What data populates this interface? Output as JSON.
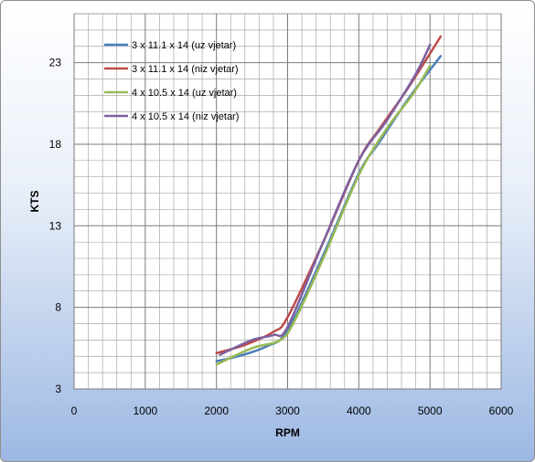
{
  "chart_data": {
    "type": "line",
    "xlabel": "RPM",
    "ylabel": "KTS",
    "xlim": [
      0,
      6000
    ],
    "ylim": [
      3,
      26
    ],
    "x_ticks": [
      0,
      1000,
      2000,
      3000,
      4000,
      5000,
      6000
    ],
    "y_ticks": [
      3,
      8,
      13,
      18,
      23
    ],
    "x_minor_step": 200,
    "y_minor_step": 1,
    "grid": true,
    "legend_position": "top-left",
    "series": [
      {
        "name": "3 x 11.1 x 14 (uz vjetar)",
        "color": "#4a7ebb",
        "x": [
          2000,
          2300,
          2700,
          3000,
          3500,
          4000,
          4300,
          4700,
          5150
        ],
        "y": [
          4.7,
          5.0,
          5.6,
          6.6,
          11.2,
          16.2,
          18.2,
          20.8,
          23.4
        ]
      },
      {
        "name": "3 x 11.1 x 14 (niz vjetar)",
        "color": "#be4b48",
        "x": [
          2000,
          2400,
          2800,
          3000,
          3500,
          4000,
          4300,
          4700,
          5150
        ],
        "y": [
          5.2,
          5.7,
          6.5,
          7.4,
          12.0,
          17.0,
          19.0,
          21.5,
          24.6
        ]
      },
      {
        "name": "4 x 10.5 x 14 (uz vjetar)",
        "color": "#98b954",
        "x": [
          2000,
          2500,
          2900,
          3100,
          3500,
          4000,
          4400,
          4750,
          5000
        ],
        "y": [
          4.5,
          5.5,
          6.0,
          7.2,
          11.0,
          16.1,
          19.0,
          21.0,
          22.8
        ]
      },
      {
        "name": "4 x 10.5 x 14 (niz vjetar)",
        "color": "#7d60a0",
        "x": [
          2050,
          2500,
          2800,
          3000,
          3500,
          4000,
          4400,
          4800,
          5000
        ],
        "y": [
          5.1,
          6.0,
          6.3,
          6.8,
          12.0,
          17.0,
          19.5,
          22.3,
          24.1
        ]
      }
    ]
  }
}
